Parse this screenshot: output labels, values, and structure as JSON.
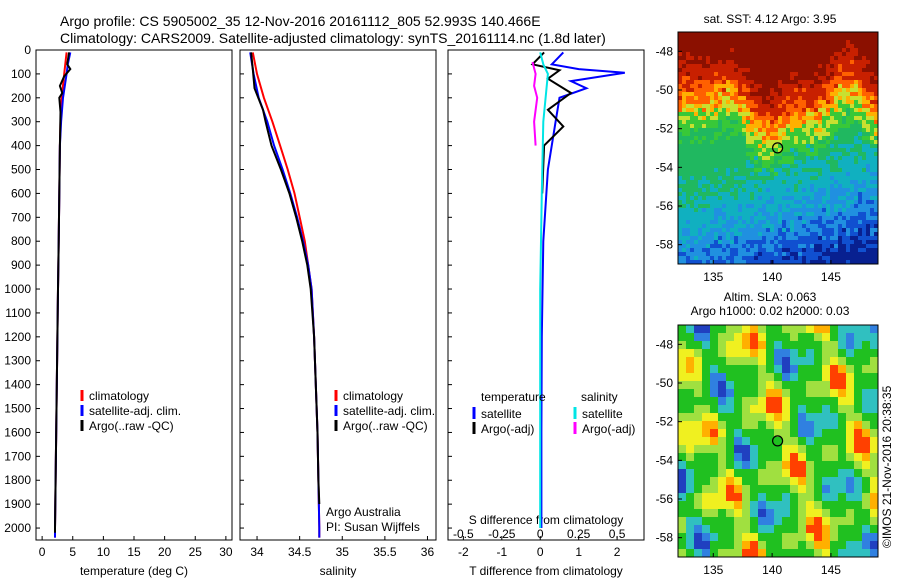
{
  "header": {
    "line1": "Argo profile: CS 5905002_35 12-Nov-2016 20161112_805 52.993S 140.466E",
    "line2": "Climatology: CARS2009. Satellite-adjusted climatology: synTS_20161114.nc (1.8d later)"
  },
  "watermark": "©IMOS 21-Nov-2016 20:38:35",
  "colors": {
    "climatology": "#ff0000",
    "satellite": "#0000ff",
    "argo": "#000000",
    "s_satellite": "#00e5e5",
    "s_argo": "#ff00ff"
  },
  "chart_data": [
    {
      "type": "line",
      "id": "temperature",
      "xlabel": "temperature (deg C)",
      "xlim": [
        -1,
        31
      ],
      "ylim": [
        2050,
        0
      ],
      "xticks": [
        0,
        5,
        10,
        15,
        20,
        25,
        30
      ],
      "yticks": [
        0,
        100,
        200,
        300,
        400,
        500,
        600,
        700,
        800,
        900,
        1000,
        1100,
        1200,
        1300,
        1400,
        1500,
        1600,
        1700,
        1800,
        1900,
        2000
      ],
      "legend": [
        "climatology",
        "satellite-adj. clim.",
        "Argo(..raw -QC)"
      ],
      "series": [
        {
          "name": "climatology",
          "points": [
            [
              4.0,
              10
            ],
            [
              3.6,
              100
            ],
            [
              3.2,
              200
            ],
            [
              3.0,
              300
            ],
            [
              2.9,
              400
            ],
            [
              2.8,
              600
            ],
            [
              2.7,
              800
            ],
            [
              2.6,
              1000
            ],
            [
              2.5,
              1200
            ],
            [
              2.4,
              1400
            ],
            [
              2.3,
              1600
            ],
            [
              2.2,
              1800
            ],
            [
              2.1,
              2000
            ],
            [
              2.1,
              2040
            ]
          ]
        },
        {
          "name": "satellite-adj. clim.",
          "points": [
            [
              4.6,
              10
            ],
            [
              4.2,
              60
            ],
            [
              4.0,
              100
            ],
            [
              3.4,
              200
            ],
            [
              3.1,
              300
            ],
            [
              2.9,
              400
            ],
            [
              2.8,
              600
            ],
            [
              2.7,
              800
            ],
            [
              2.6,
              1000
            ],
            [
              2.5,
              1200
            ],
            [
              2.4,
              1400
            ],
            [
              2.3,
              1600
            ],
            [
              2.2,
              1800
            ],
            [
              2.1,
              2000
            ],
            [
              2.1,
              2040
            ]
          ]
        },
        {
          "name": "Argo(..raw -QC)",
          "points": [
            [
              4.4,
              10
            ],
            [
              4.1,
              60
            ],
            [
              4.6,
              80
            ],
            [
              3.6,
              110
            ],
            [
              2.9,
              150
            ],
            [
              3.3,
              180
            ],
            [
              2.8,
              200
            ],
            [
              3.0,
              260
            ],
            [
              2.9,
              400
            ],
            [
              2.8,
              600
            ],
            [
              2.7,
              800
            ],
            [
              2.6,
              1000
            ],
            [
              2.5,
              1200
            ],
            [
              2.4,
              1400
            ],
            [
              2.3,
              1600
            ],
            [
              2.2,
              1800
            ],
            [
              2.1,
              2000
            ],
            [
              2.1,
              2020
            ]
          ]
        }
      ]
    },
    {
      "type": "line",
      "id": "salinity",
      "xlabel": "salinity",
      "xlim": [
        33.8,
        36.1
      ],
      "ylim": [
        2050,
        0
      ],
      "xticks": [
        34,
        34.5,
        35,
        35.5,
        36
      ],
      "legend": [
        "climatology",
        "satellite-adj. clim.",
        "Argo(..raw -QC)"
      ],
      "annotations": [
        "Argo Australia",
        "PI: Susan Wijffels"
      ],
      "series": [
        {
          "name": "climatology",
          "points": [
            [
              33.95,
              10
            ],
            [
              34.0,
              100
            ],
            [
              34.08,
              200
            ],
            [
              34.18,
              300
            ],
            [
              34.27,
              400
            ],
            [
              34.36,
              500
            ],
            [
              34.44,
              600
            ],
            [
              34.5,
              700
            ],
            [
              34.56,
              800
            ],
            [
              34.6,
              900
            ],
            [
              34.64,
              1000
            ],
            [
              34.67,
              1200
            ],
            [
              34.69,
              1400
            ],
            [
              34.71,
              1600
            ],
            [
              34.72,
              1800
            ],
            [
              34.73,
              2000
            ],
            [
              34.73,
              2040
            ]
          ]
        },
        {
          "name": "satellite-adj. clim.",
          "points": [
            [
              33.92,
              10
            ],
            [
              33.96,
              100
            ],
            [
              34.02,
              200
            ],
            [
              34.12,
              300
            ],
            [
              34.2,
              400
            ],
            [
              34.3,
              500
            ],
            [
              34.39,
              600
            ],
            [
              34.47,
              700
            ],
            [
              34.54,
              800
            ],
            [
              34.6,
              900
            ],
            [
              34.64,
              1000
            ],
            [
              34.67,
              1200
            ],
            [
              34.69,
              1400
            ],
            [
              34.71,
              1600
            ],
            [
              34.72,
              1800
            ],
            [
              34.73,
              2000
            ],
            [
              34.73,
              2040
            ]
          ]
        },
        {
          "name": "Argo(..raw -QC)",
          "points": [
            [
              33.93,
              10
            ],
            [
              33.95,
              80
            ],
            [
              33.97,
              160
            ],
            [
              34.07,
              250
            ],
            [
              34.1,
              300
            ],
            [
              34.17,
              400
            ],
            [
              34.28,
              500
            ],
            [
              34.38,
              600
            ],
            [
              34.46,
              700
            ],
            [
              34.53,
              800
            ],
            [
              34.59,
              900
            ],
            [
              34.63,
              1000
            ],
            [
              34.67,
              1200
            ],
            [
              34.69,
              1400
            ],
            [
              34.71,
              1600
            ],
            [
              34.72,
              1800
            ],
            [
              34.73,
              1900
            ]
          ]
        }
      ]
    },
    {
      "type": "line",
      "id": "difference",
      "xlabel": "T difference from climatology",
      "x2label": "S difference from climatology",
      "xlim": [
        -2.4,
        2.7
      ],
      "x2lim": [
        -0.6,
        0.675
      ],
      "ylim": [
        2050,
        0
      ],
      "xticks": [
        -2,
        -1,
        0,
        1,
        2
      ],
      "x2ticks": [
        -0.5,
        -0.25,
        0,
        0.25,
        0.5
      ],
      "legend_temperature": [
        "temperature",
        "satellite",
        "Argo(-adj)"
      ],
      "legend_salinity": [
        "salinity",
        "satellite",
        "Argo(-adj)"
      ],
      "series": [
        {
          "name": "T satellite",
          "axis": "T",
          "points": [
            [
              0.6,
              10
            ],
            [
              0.3,
              60
            ],
            [
              1.0,
              80
            ],
            [
              2.2,
              95
            ],
            [
              0.8,
              130
            ],
            [
              1.2,
              160
            ],
            [
              0.5,
              200
            ],
            [
              0.4,
              300
            ],
            [
              0.2,
              500
            ],
            [
              0.08,
              800
            ],
            [
              0.04,
              1200
            ],
            [
              0.03,
              1600
            ],
            [
              0.03,
              2000
            ]
          ]
        },
        {
          "name": "T Argo(-adj)",
          "axis": "T",
          "points": [
            [
              0.1,
              10
            ],
            [
              -0.2,
              60
            ],
            [
              0.5,
              85
            ],
            [
              0.2,
              120
            ],
            [
              0.8,
              180
            ],
            [
              0.2,
              250
            ],
            [
              0.6,
              320
            ],
            [
              0.1,
              400
            ],
            [
              0.05,
              600
            ]
          ]
        },
        {
          "name": "S satellite",
          "axis": "S",
          "points": [
            [
              0.0,
              10
            ],
            [
              0.02,
              60
            ],
            [
              0.05,
              100
            ],
            [
              0.02,
              300
            ],
            [
              0.01,
              600
            ],
            [
              0.0,
              1000
            ],
            [
              0.0,
              1400
            ],
            [
              0.0,
              2000
            ]
          ]
        },
        {
          "name": "S Argo(-adj)",
          "axis": "S",
          "points": [
            [
              -0.05,
              50
            ],
            [
              -0.03,
              100
            ],
            [
              -0.04,
              150
            ],
            [
              -0.02,
              200
            ],
            [
              -0.04,
              300
            ],
            [
              -0.03,
              400
            ]
          ]
        }
      ]
    },
    {
      "type": "heatmap",
      "id": "sst-map",
      "title": "sat. SST: 4.12 Argo: 3.95",
      "xlim": [
        132,
        149
      ],
      "ylim": [
        -59,
        -47
      ],
      "xticks": [
        135,
        140,
        145
      ],
      "yticks": [
        -48,
        -50,
        -52,
        -54,
        -56,
        -58
      ],
      "marker": [
        140.466,
        -52.993
      ]
    },
    {
      "type": "heatmap",
      "id": "sla-map",
      "title": "Altim. SLA: 0.063",
      "subtitle": "Argo h1000: 0.02 h2000: 0.03",
      "xlim": [
        132,
        149
      ],
      "ylim": [
        -59,
        -47
      ],
      "xticks": [
        135,
        140,
        145
      ],
      "yticks": [
        -48,
        -50,
        -52,
        -54,
        -56,
        -58
      ],
      "marker": [
        140.466,
        -52.993
      ]
    }
  ]
}
